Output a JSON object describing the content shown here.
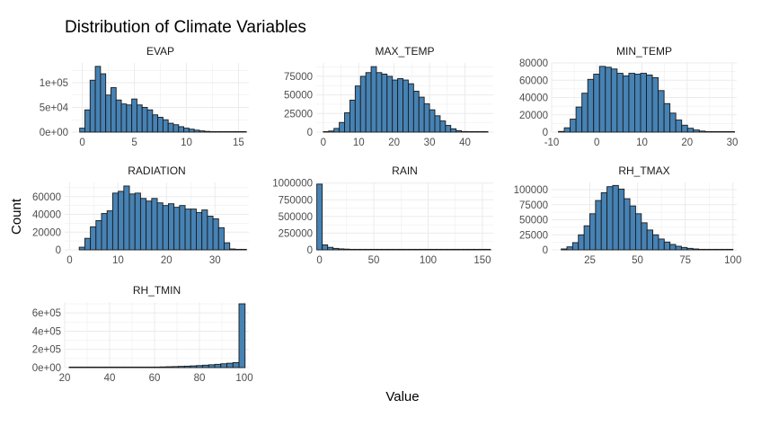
{
  "chart_data": {
    "type": "histogram",
    "title": "Distribution of Climate Variables",
    "xlabel": "Value",
    "ylabel": "Count",
    "colors": {
      "bar_fill": "#4682b4",
      "bar_stroke": "#1a1a1a",
      "grid": "#ebebeb"
    },
    "panels": [
      {
        "name": "EVAP",
        "bin_start": -0.25,
        "bin_width": 0.5,
        "counts": [
          8000,
          45000,
          105000,
          133000,
          118000,
          75000,
          90000,
          65000,
          57000,
          55000,
          67000,
          55000,
          50000,
          45000,
          35000,
          30000,
          25000,
          18000,
          15000,
          11000,
          8000,
          6000,
          4000,
          2500,
          1500,
          1000,
          700,
          400,
          200,
          100,
          50,
          0
        ],
        "xlim": [
          -1,
          16
        ],
        "ylim": [
          0,
          140000
        ],
        "xticks": [
          0,
          5,
          10,
          15
        ],
        "xtick_labels": [
          "0",
          "5",
          "10",
          "15"
        ],
        "yticks": [
          0,
          50000,
          100000
        ],
        "ytick_labels": [
          "0e+00",
          "5e+04",
          "1e+05"
        ]
      },
      {
        "name": "MAX_TEMP",
        "bin_start": 0,
        "bin_width": 1.5,
        "counts": [
          500,
          1500,
          5000,
          13000,
          26000,
          43000,
          62000,
          75000,
          80000,
          88000,
          80000,
          78000,
          75000,
          70000,
          72000,
          70000,
          65000,
          55000,
          47000,
          38000,
          30000,
          22000,
          15000,
          9000,
          4500,
          2000,
          800,
          300,
          100,
          50,
          20
        ],
        "xlim": [
          -2,
          48
        ],
        "ylim": [
          0,
          93000
        ],
        "xticks": [
          0,
          10,
          20,
          30,
          40
        ],
        "xtick_labels": [
          "0",
          "10",
          "20",
          "30",
          "40"
        ],
        "yticks": [
          0,
          25000,
          50000,
          75000
        ],
        "ytick_labels": [
          "0",
          "25000",
          "50000",
          "75000"
        ]
      },
      {
        "name": "MIN_TEMP",
        "bin_start": -8.5,
        "bin_width": 1.3,
        "counts": [
          800,
          5000,
          15000,
          29000,
          45000,
          61000,
          67000,
          76000,
          75000,
          73000,
          68000,
          65000,
          68000,
          67000,
          68000,
          66000,
          63000,
          48000,
          33000,
          22000,
          14000,
          8000,
          4500,
          2500,
          1200,
          500,
          200,
          100,
          50,
          20
        ],
        "xlim": [
          -10,
          31
        ],
        "ylim": [
          0,
          80000
        ],
        "xticks": [
          -10,
          0,
          10,
          20,
          30
        ],
        "xtick_labels": [
          "-10",
          "0",
          "10",
          "20",
          "30"
        ],
        "yticks": [
          0,
          20000,
          40000,
          60000,
          80000
        ],
        "ytick_labels": [
          "0",
          "20000",
          "40000",
          "60000",
          "80000"
        ]
      },
      {
        "name": "RADIATION",
        "bin_start": 2,
        "bin_width": 1.15,
        "counts": [
          3000,
          13000,
          26000,
          33000,
          41000,
          44000,
          64000,
          66000,
          72000,
          63000,
          64000,
          58000,
          55000,
          58000,
          53000,
          50000,
          52000,
          48000,
          50000,
          46000,
          46000,
          42000,
          45000,
          38000,
          35000,
          25000,
          8000,
          1000,
          300,
          100
        ],
        "xlim": [
          -1,
          37
        ],
        "ylim": [
          0,
          76000
        ],
        "xticks": [
          0,
          10,
          20,
          30
        ],
        "xtick_labels": [
          "0",
          "10",
          "20",
          "30"
        ],
        "yticks": [
          0,
          20000,
          40000,
          60000
        ],
        "ytick_labels": [
          "0",
          "20000",
          "40000",
          "60000"
        ]
      },
      {
        "name": "RAIN",
        "bin_start": -2.5,
        "bin_width": 5,
        "counts": [
          985000,
          75000,
          38000,
          22000,
          15000,
          11000,
          8000,
          6000,
          4500,
          3500,
          2500,
          2000,
          1500,
          1200,
          900,
          700,
          500,
          400,
          300,
          250,
          200,
          150,
          120,
          100,
          80,
          60,
          50,
          40,
          30,
          20,
          15,
          10
        ],
        "xlim": [
          -3,
          160
        ],
        "ylim": [
          0,
          1010000
        ],
        "xticks": [
          0,
          50,
          100,
          150
        ],
        "xtick_labels": [
          "0",
          "50",
          "100",
          "150"
        ],
        "yticks": [
          0,
          250000,
          500000,
          750000,
          1000000
        ],
        "ytick_labels": [
          "0",
          "250000",
          "500000",
          "750000",
          "1000000"
        ]
      },
      {
        "name": "RH_TMAX",
        "bin_start": 10,
        "bin_width": 3,
        "counts": [
          1500,
          5000,
          12000,
          25000,
          40000,
          60000,
          82000,
          95000,
          105000,
          107000,
          101000,
          85000,
          73000,
          60000,
          45000,
          33000,
          25000,
          18000,
          13000,
          9000,
          6000,
          4000,
          2500,
          1500,
          800,
          400,
          200,
          100,
          50,
          20
        ],
        "xlim": [
          5,
          102
        ],
        "ylim": [
          0,
          112000
        ],
        "xticks": [
          25,
          50,
          75,
          100
        ],
        "xtick_labels": [
          "25",
          "50",
          "75",
          "100"
        ],
        "yticks": [
          0,
          25000,
          50000,
          75000,
          100000
        ],
        "ytick_labels": [
          "0",
          "25000",
          "50000",
          "75000",
          "100000"
        ]
      },
      {
        "name": "RH_TMIN",
        "bin_start": 22,
        "bin_width": 2.7,
        "counts": [
          300,
          400,
          500,
          600,
          700,
          900,
          1100,
          1400,
          1700,
          2100,
          2600,
          3200,
          4000,
          5000,
          6200,
          7600,
          9300,
          11000,
          13500,
          16000,
          19000,
          22500,
          26500,
          31000,
          36000,
          42000,
          48000,
          55000,
          700000
        ],
        "xlim": [
          20,
          102
        ],
        "ylim": [
          0,
          720000
        ],
        "xticks": [
          20,
          40,
          60,
          80,
          100
        ],
        "xtick_labels": [
          "20",
          "40",
          "60",
          "80",
          "100"
        ],
        "yticks": [
          0,
          200000,
          400000,
          600000
        ],
        "ytick_labels": [
          "0e+00",
          "2e+05",
          "4e+05",
          "6e+05"
        ]
      }
    ]
  }
}
